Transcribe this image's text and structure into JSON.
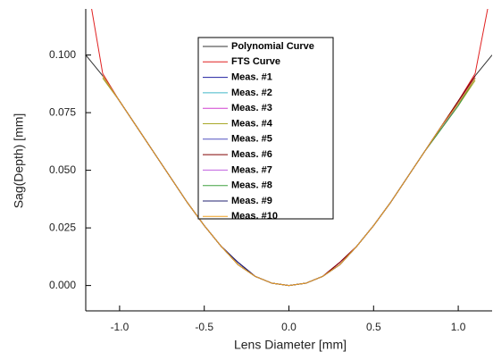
{
  "chart_data": {
    "type": "line",
    "xlabel": "Lens Diameter [mm]",
    "ylabel": "Sag(Depth) [mm]",
    "x": [
      -1.2,
      -1.1,
      -1.0,
      -0.9,
      -0.8,
      -0.7,
      -0.6,
      -0.5,
      -0.4,
      -0.3,
      -0.2,
      -0.1,
      0.0,
      0.1,
      0.2,
      0.3,
      0.4,
      0.5,
      0.6,
      0.7,
      0.8,
      0.9,
      1.0,
      1.1,
      1.2
    ],
    "series": [
      {
        "name": "Polynomial Curve",
        "color": "#333333",
        "values": [
          0.1,
          0.091,
          0.08,
          0.069,
          0.058,
          0.047,
          0.036,
          0.026,
          0.017,
          0.009,
          0.004,
          0.001,
          0.0,
          0.001,
          0.004,
          0.009,
          0.017,
          0.026,
          0.036,
          0.047,
          0.058,
          0.069,
          0.08,
          0.091,
          0.1
        ]
      },
      {
        "name": "FTS Curve",
        "color": "#e02020",
        "values": [
          0.135,
          0.092,
          0.08,
          0.069,
          0.058,
          0.047,
          0.036,
          0.026,
          0.017,
          0.01,
          0.004,
          0.001,
          0.0,
          0.001,
          0.004,
          0.01,
          0.017,
          0.026,
          0.036,
          0.047,
          0.058,
          0.069,
          0.08,
          0.092,
          0.13
        ]
      },
      {
        "name": "Meas. #1",
        "color": "#2020a0",
        "values": [
          null,
          0.091,
          0.08,
          0.069,
          0.058,
          0.047,
          0.036,
          0.026,
          0.017,
          0.01,
          0.004,
          0.001,
          0.0,
          0.001,
          0.004,
          0.009,
          0.017,
          0.026,
          0.036,
          0.047,
          0.058,
          0.069,
          0.079,
          0.09,
          null
        ]
      },
      {
        "name": "Meas. #2",
        "color": "#40b8c8",
        "values": [
          null,
          0.091,
          0.08,
          0.069,
          0.058,
          0.047,
          0.036,
          0.026,
          0.017,
          0.009,
          0.004,
          0.001,
          0.0,
          0.001,
          0.004,
          0.009,
          0.017,
          0.026,
          0.036,
          0.047,
          0.058,
          0.068,
          0.078,
          0.09,
          null
        ]
      },
      {
        "name": "Meas. #3",
        "color": "#d040d0",
        "values": [
          null,
          0.091,
          0.08,
          0.069,
          0.058,
          0.047,
          0.036,
          0.026,
          0.017,
          0.009,
          0.004,
          0.001,
          0.0,
          0.001,
          0.004,
          0.01,
          0.017,
          0.026,
          0.036,
          0.047,
          0.058,
          0.069,
          0.079,
          0.091,
          null
        ]
      },
      {
        "name": "Meas. #4",
        "color": "#a8a828",
        "values": [
          null,
          0.09,
          0.08,
          0.069,
          0.058,
          0.047,
          0.036,
          0.026,
          0.017,
          0.009,
          0.004,
          0.001,
          0.0,
          0.001,
          0.004,
          0.009,
          0.017,
          0.026,
          0.036,
          0.047,
          0.058,
          0.068,
          0.078,
          0.089,
          null
        ]
      },
      {
        "name": "Meas. #5",
        "color": "#5050c0",
        "values": [
          null,
          0.091,
          0.08,
          0.069,
          0.058,
          0.047,
          0.036,
          0.026,
          0.017,
          0.01,
          0.004,
          0.001,
          0.0,
          0.001,
          0.004,
          0.009,
          0.017,
          0.026,
          0.036,
          0.047,
          0.058,
          0.069,
          0.079,
          0.09,
          null
        ]
      },
      {
        "name": "Meas. #6",
        "color": "#800000",
        "values": [
          null,
          0.091,
          0.08,
          0.069,
          0.058,
          0.047,
          0.036,
          0.026,
          0.017,
          0.009,
          0.004,
          0.001,
          0.0,
          0.001,
          0.004,
          0.01,
          0.017,
          0.026,
          0.036,
          0.047,
          0.058,
          0.069,
          0.08,
          0.091,
          null
        ]
      },
      {
        "name": "Meas. #7",
        "color": "#c060e0",
        "values": [
          null,
          0.091,
          0.08,
          0.069,
          0.058,
          0.047,
          0.036,
          0.026,
          0.017,
          0.009,
          0.004,
          0.001,
          0.0,
          0.001,
          0.004,
          0.009,
          0.017,
          0.026,
          0.036,
          0.047,
          0.058,
          0.068,
          0.079,
          0.09,
          null
        ]
      },
      {
        "name": "Meas. #8",
        "color": "#40a040",
        "values": [
          null,
          0.091,
          0.08,
          0.069,
          0.058,
          0.047,
          0.036,
          0.026,
          0.017,
          0.009,
          0.004,
          0.001,
          0.0,
          0.001,
          0.004,
          0.009,
          0.017,
          0.026,
          0.036,
          0.047,
          0.058,
          0.068,
          0.078,
          0.09,
          null
        ]
      },
      {
        "name": "Meas. #9",
        "color": "#202070",
        "values": [
          null,
          0.091,
          0.08,
          0.069,
          0.058,
          0.047,
          0.036,
          0.026,
          0.017,
          0.01,
          0.004,
          0.001,
          0.0,
          0.001,
          0.004,
          0.009,
          0.017,
          0.026,
          0.036,
          0.047,
          0.058,
          0.069,
          0.079,
          0.09,
          null
        ]
      },
      {
        "name": "Meas. #10",
        "color": "#f0a020",
        "values": [
          null,
          0.091,
          0.08,
          0.069,
          0.058,
          0.047,
          0.036,
          0.026,
          0.017,
          0.009,
          0.004,
          0.001,
          0.0,
          0.001,
          0.004,
          0.009,
          0.017,
          0.026,
          0.036,
          0.047,
          0.058,
          0.069,
          0.079,
          0.09,
          null
        ]
      }
    ],
    "xlim": [
      -1.2,
      1.2
    ],
    "ylim": [
      -0.011,
      0.12
    ],
    "xticks": [
      {
        "value": -1.0,
        "label": "-1.0"
      },
      {
        "value": -0.5,
        "label": "-0.5"
      },
      {
        "value": 0.0,
        "label": "0.0"
      },
      {
        "value": 0.5,
        "label": "0.5"
      },
      {
        "value": 1.0,
        "label": "1.0"
      }
    ],
    "yticks": [
      {
        "value": 0.0,
        "label": "0.000"
      },
      {
        "value": 0.025,
        "label": "0.025"
      },
      {
        "value": 0.05,
        "label": "0.050"
      },
      {
        "value": 0.075,
        "label": "0.075"
      },
      {
        "value": 0.1,
        "label": "0.100"
      }
    ],
    "grid": false,
    "legend": "top-center"
  }
}
